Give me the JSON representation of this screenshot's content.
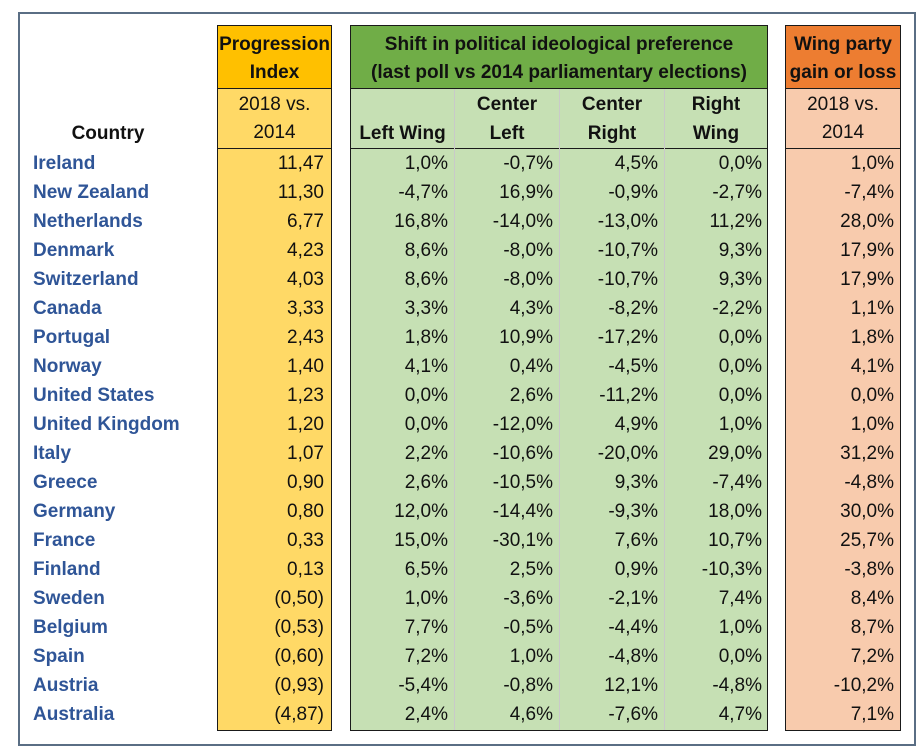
{
  "headers": {
    "country": "Country",
    "progression_title_1": "Progression",
    "progression_title_2": "Index",
    "progression_sub_1": "2018 vs.",
    "progression_sub_2": "2014",
    "shift_title_1": "Shift in political ideological preference",
    "shift_title_2": "(last poll vs 2014 parliamentary elections)",
    "left_wing": "Left Wing",
    "center_left_1": "Center",
    "center_left_2": "Left",
    "center_right_1": "Center",
    "center_right_2": "Right",
    "right_wing_1": "Right",
    "right_wing_2": "Wing",
    "wing_title_1": "Wing party",
    "wing_title_2": "gain or loss",
    "wing_sub_1": "2018 vs.",
    "wing_sub_2": "2014"
  },
  "colors": {
    "progression_header": "#ffc000",
    "progression_body": "#ffd966",
    "shift_header": "#70ad47",
    "shift_body": "#c6e0b4",
    "wing_header": "#ed7d31",
    "wing_body": "#f8cbad",
    "country_text": "#2f5597"
  },
  "rows": [
    {
      "country": "Ireland",
      "index": "11,47",
      "left": "1,0%",
      "center_left": "-0,7%",
      "center_right": "4,5%",
      "right": "0,0%",
      "wing": "1,0%"
    },
    {
      "country": "New Zealand",
      "index": "11,30",
      "left": "-4,7%",
      "center_left": "16,9%",
      "center_right": "-0,9%",
      "right": "-2,7%",
      "wing": "-7,4%"
    },
    {
      "country": "Netherlands",
      "index": "6,77",
      "left": "16,8%",
      "center_left": "-14,0%",
      "center_right": "-13,0%",
      "right": "11,2%",
      "wing": "28,0%"
    },
    {
      "country": "Denmark",
      "index": "4,23",
      "left": "8,6%",
      "center_left": "-8,0%",
      "center_right": "-10,7%",
      "right": "9,3%",
      "wing": "17,9%"
    },
    {
      "country": "Switzerland",
      "index": "4,03",
      "left": "8,6%",
      "center_left": "-8,0%",
      "center_right": "-10,7%",
      "right": "9,3%",
      "wing": "17,9%"
    },
    {
      "country": "Canada",
      "index": "3,33",
      "left": "3,3%",
      "center_left": "4,3%",
      "center_right": "-8,2%",
      "right": "-2,2%",
      "wing": "1,1%"
    },
    {
      "country": "Portugal",
      "index": "2,43",
      "left": "1,8%",
      "center_left": "10,9%",
      "center_right": "-17,2%",
      "right": "0,0%",
      "wing": "1,8%"
    },
    {
      "country": "Norway",
      "index": "1,40",
      "left": "4,1%",
      "center_left": "0,4%",
      "center_right": "-4,5%",
      "right": "0,0%",
      "wing": "4,1%"
    },
    {
      "country": "United States",
      "index": "1,23",
      "left": "0,0%",
      "center_left": "2,6%",
      "center_right": "-11,2%",
      "right": "0,0%",
      "wing": "0,0%"
    },
    {
      "country": "United Kingdom",
      "index": "1,20",
      "left": "0,0%",
      "center_left": "-12,0%",
      "center_right": "4,9%",
      "right": "1,0%",
      "wing": "1,0%"
    },
    {
      "country": "Italy",
      "index": "1,07",
      "left": "2,2%",
      "center_left": "-10,6%",
      "center_right": "-20,0%",
      "right": "29,0%",
      "wing": "31,2%"
    },
    {
      "country": "Greece",
      "index": "0,90",
      "left": "2,6%",
      "center_left": "-10,5%",
      "center_right": "9,3%",
      "right": "-7,4%",
      "wing": "-4,8%"
    },
    {
      "country": "Germany",
      "index": "0,80",
      "left": "12,0%",
      "center_left": "-14,4%",
      "center_right": "-9,3%",
      "right": "18,0%",
      "wing": "30,0%"
    },
    {
      "country": "France",
      "index": "0,33",
      "left": "15,0%",
      "center_left": "-30,1%",
      "center_right": "7,6%",
      "right": "10,7%",
      "wing": "25,7%"
    },
    {
      "country": "Finland",
      "index": "0,13",
      "left": "6,5%",
      "center_left": "2,5%",
      "center_right": "0,9%",
      "right": "-10,3%",
      "wing": "-3,8%"
    },
    {
      "country": "Sweden",
      "index": "(0,50)",
      "left": "1,0%",
      "center_left": "-3,6%",
      "center_right": "-2,1%",
      "right": "7,4%",
      "wing": "8,4%"
    },
    {
      "country": "Belgium",
      "index": "(0,53)",
      "left": "7,7%",
      "center_left": "-0,5%",
      "center_right": "-4,4%",
      "right": "1,0%",
      "wing": "8,7%"
    },
    {
      "country": "Spain",
      "index": "(0,60)",
      "left": "7,2%",
      "center_left": "1,0%",
      "center_right": "-4,8%",
      "right": "0,0%",
      "wing": "7,2%"
    },
    {
      "country": "Austria",
      "index": "(0,93)",
      "left": "-5,4%",
      "center_left": "-0,8%",
      "center_right": "12,1%",
      "right": "-4,8%",
      "wing": "-10,2%"
    },
    {
      "country": "Australia",
      "index": "(4,87)",
      "left": "2,4%",
      "center_left": "4,6%",
      "center_right": "-7,6%",
      "right": "4,7%",
      "wing": "7,1%"
    }
  ]
}
